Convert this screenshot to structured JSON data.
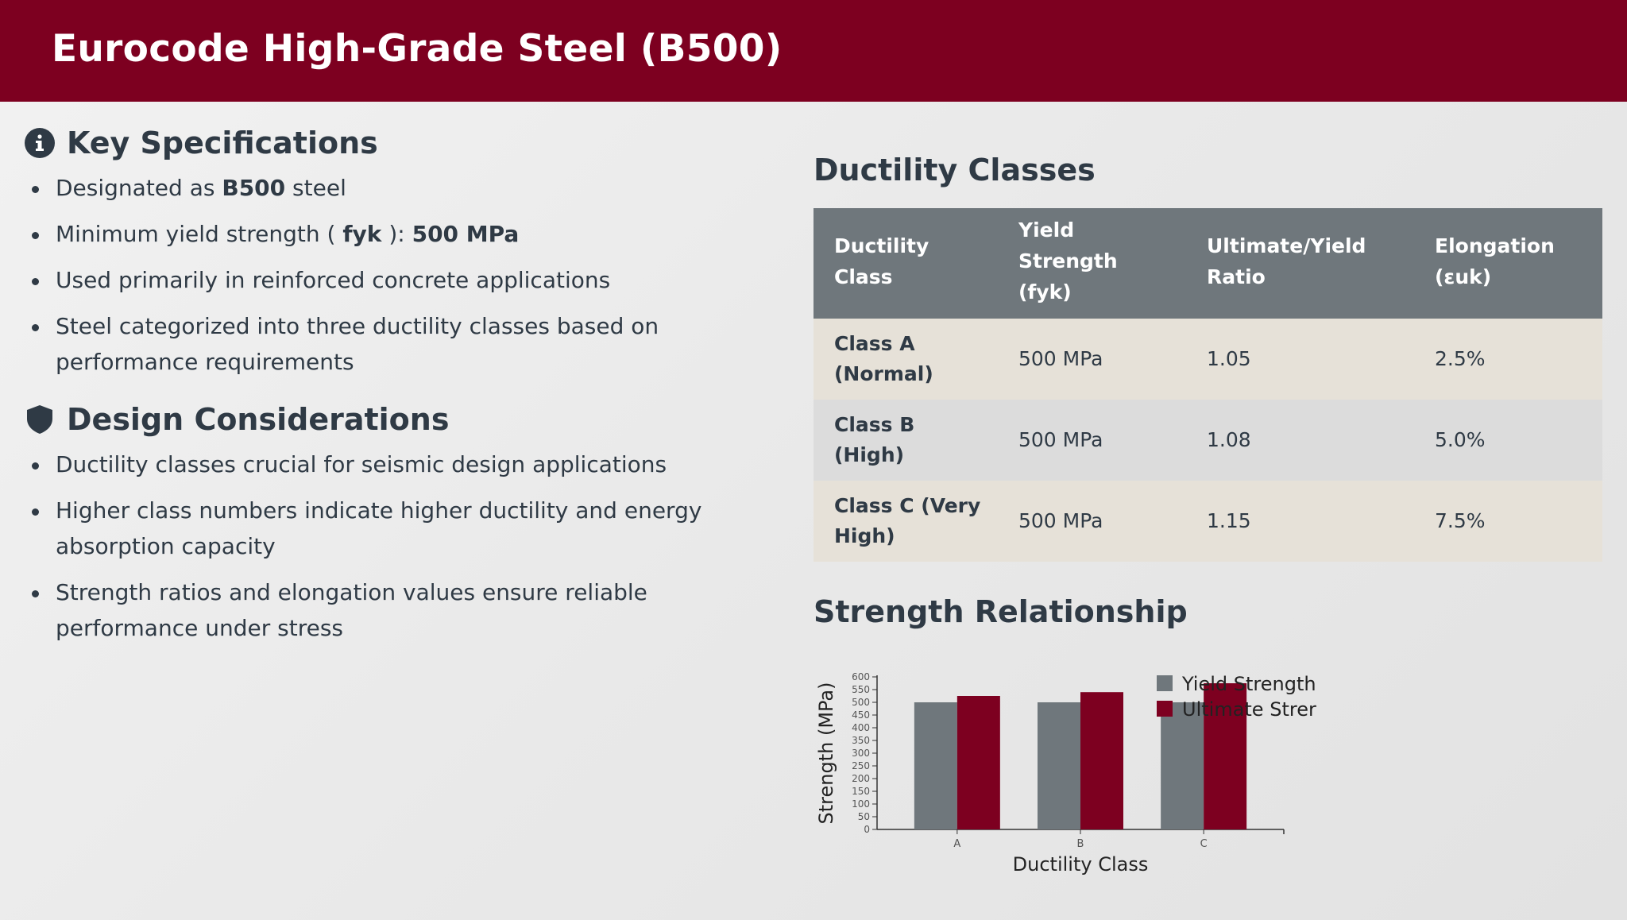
{
  "header": {
    "title": "Eurocode High-Grade Steel (B500)"
  },
  "key_specs": {
    "title": "Key Specifications",
    "icon": "info-circle-icon",
    "items": [
      {
        "pre": "Designated as ",
        "bold": "B500",
        "post": " steel"
      },
      {
        "pre": "Minimum yield strength ( ",
        "bold": "fyk",
        "mid": " ): ",
        "bold2": "500 MPa"
      },
      {
        "text": "Used primarily in reinforced concrete applications"
      },
      {
        "text": "Steel categorized into three ductility classes based on performance requirements"
      }
    ]
  },
  "design": {
    "title": "Design Considerations",
    "icon": "shield-icon",
    "items": [
      "Ductility classes crucial for seismic design applications",
      "Higher class numbers indicate higher ductility and energy absorption capacity",
      "Strength ratios and elongation values ensure reliable performance under stress"
    ]
  },
  "ductility": {
    "title": "Ductility Classes",
    "headers": [
      "Ductility Class",
      "Yield Strength (fyk)",
      "Ultimate/Yield Ratio",
      "Elongation (εuk)"
    ],
    "rows": [
      {
        "cls": "Class A (Normal)",
        "yield": "500 MPa",
        "ratio": "1.05",
        "elong": "2.5%"
      },
      {
        "cls": "Class B (High)",
        "yield": "500 MPa",
        "ratio": "1.08",
        "elong": "5.0%"
      },
      {
        "cls": "Class C (Very High)",
        "yield": "500 MPa",
        "ratio": "1.15",
        "elong": "7.5%"
      }
    ]
  },
  "strength": {
    "title": "Strength Relationship"
  },
  "colors": {
    "header": "#7d0020",
    "yield": "#6f777c",
    "ultimate": "#7d0020",
    "text": "#2f3a45"
  },
  "chart_data": {
    "type": "bar",
    "categories": [
      "A",
      "B",
      "C"
    ],
    "series": [
      {
        "name": "Yield Strength",
        "values": [
          500,
          500,
          500
        ]
      },
      {
        "name": "Ultimate Strer",
        "values": [
          525,
          540,
          575
        ]
      }
    ],
    "xlabel": "Ductility Class",
    "ylabel": "Strength (MPa)",
    "ylim": [
      0,
      600
    ],
    "yticks": [
      0,
      50,
      100,
      150,
      200,
      250,
      300,
      350,
      400,
      450,
      500,
      550,
      600
    ],
    "legend": "top-right",
    "legend_labels": [
      "Yield Strength",
      "Ultimate Strer"
    ],
    "grid": false
  }
}
